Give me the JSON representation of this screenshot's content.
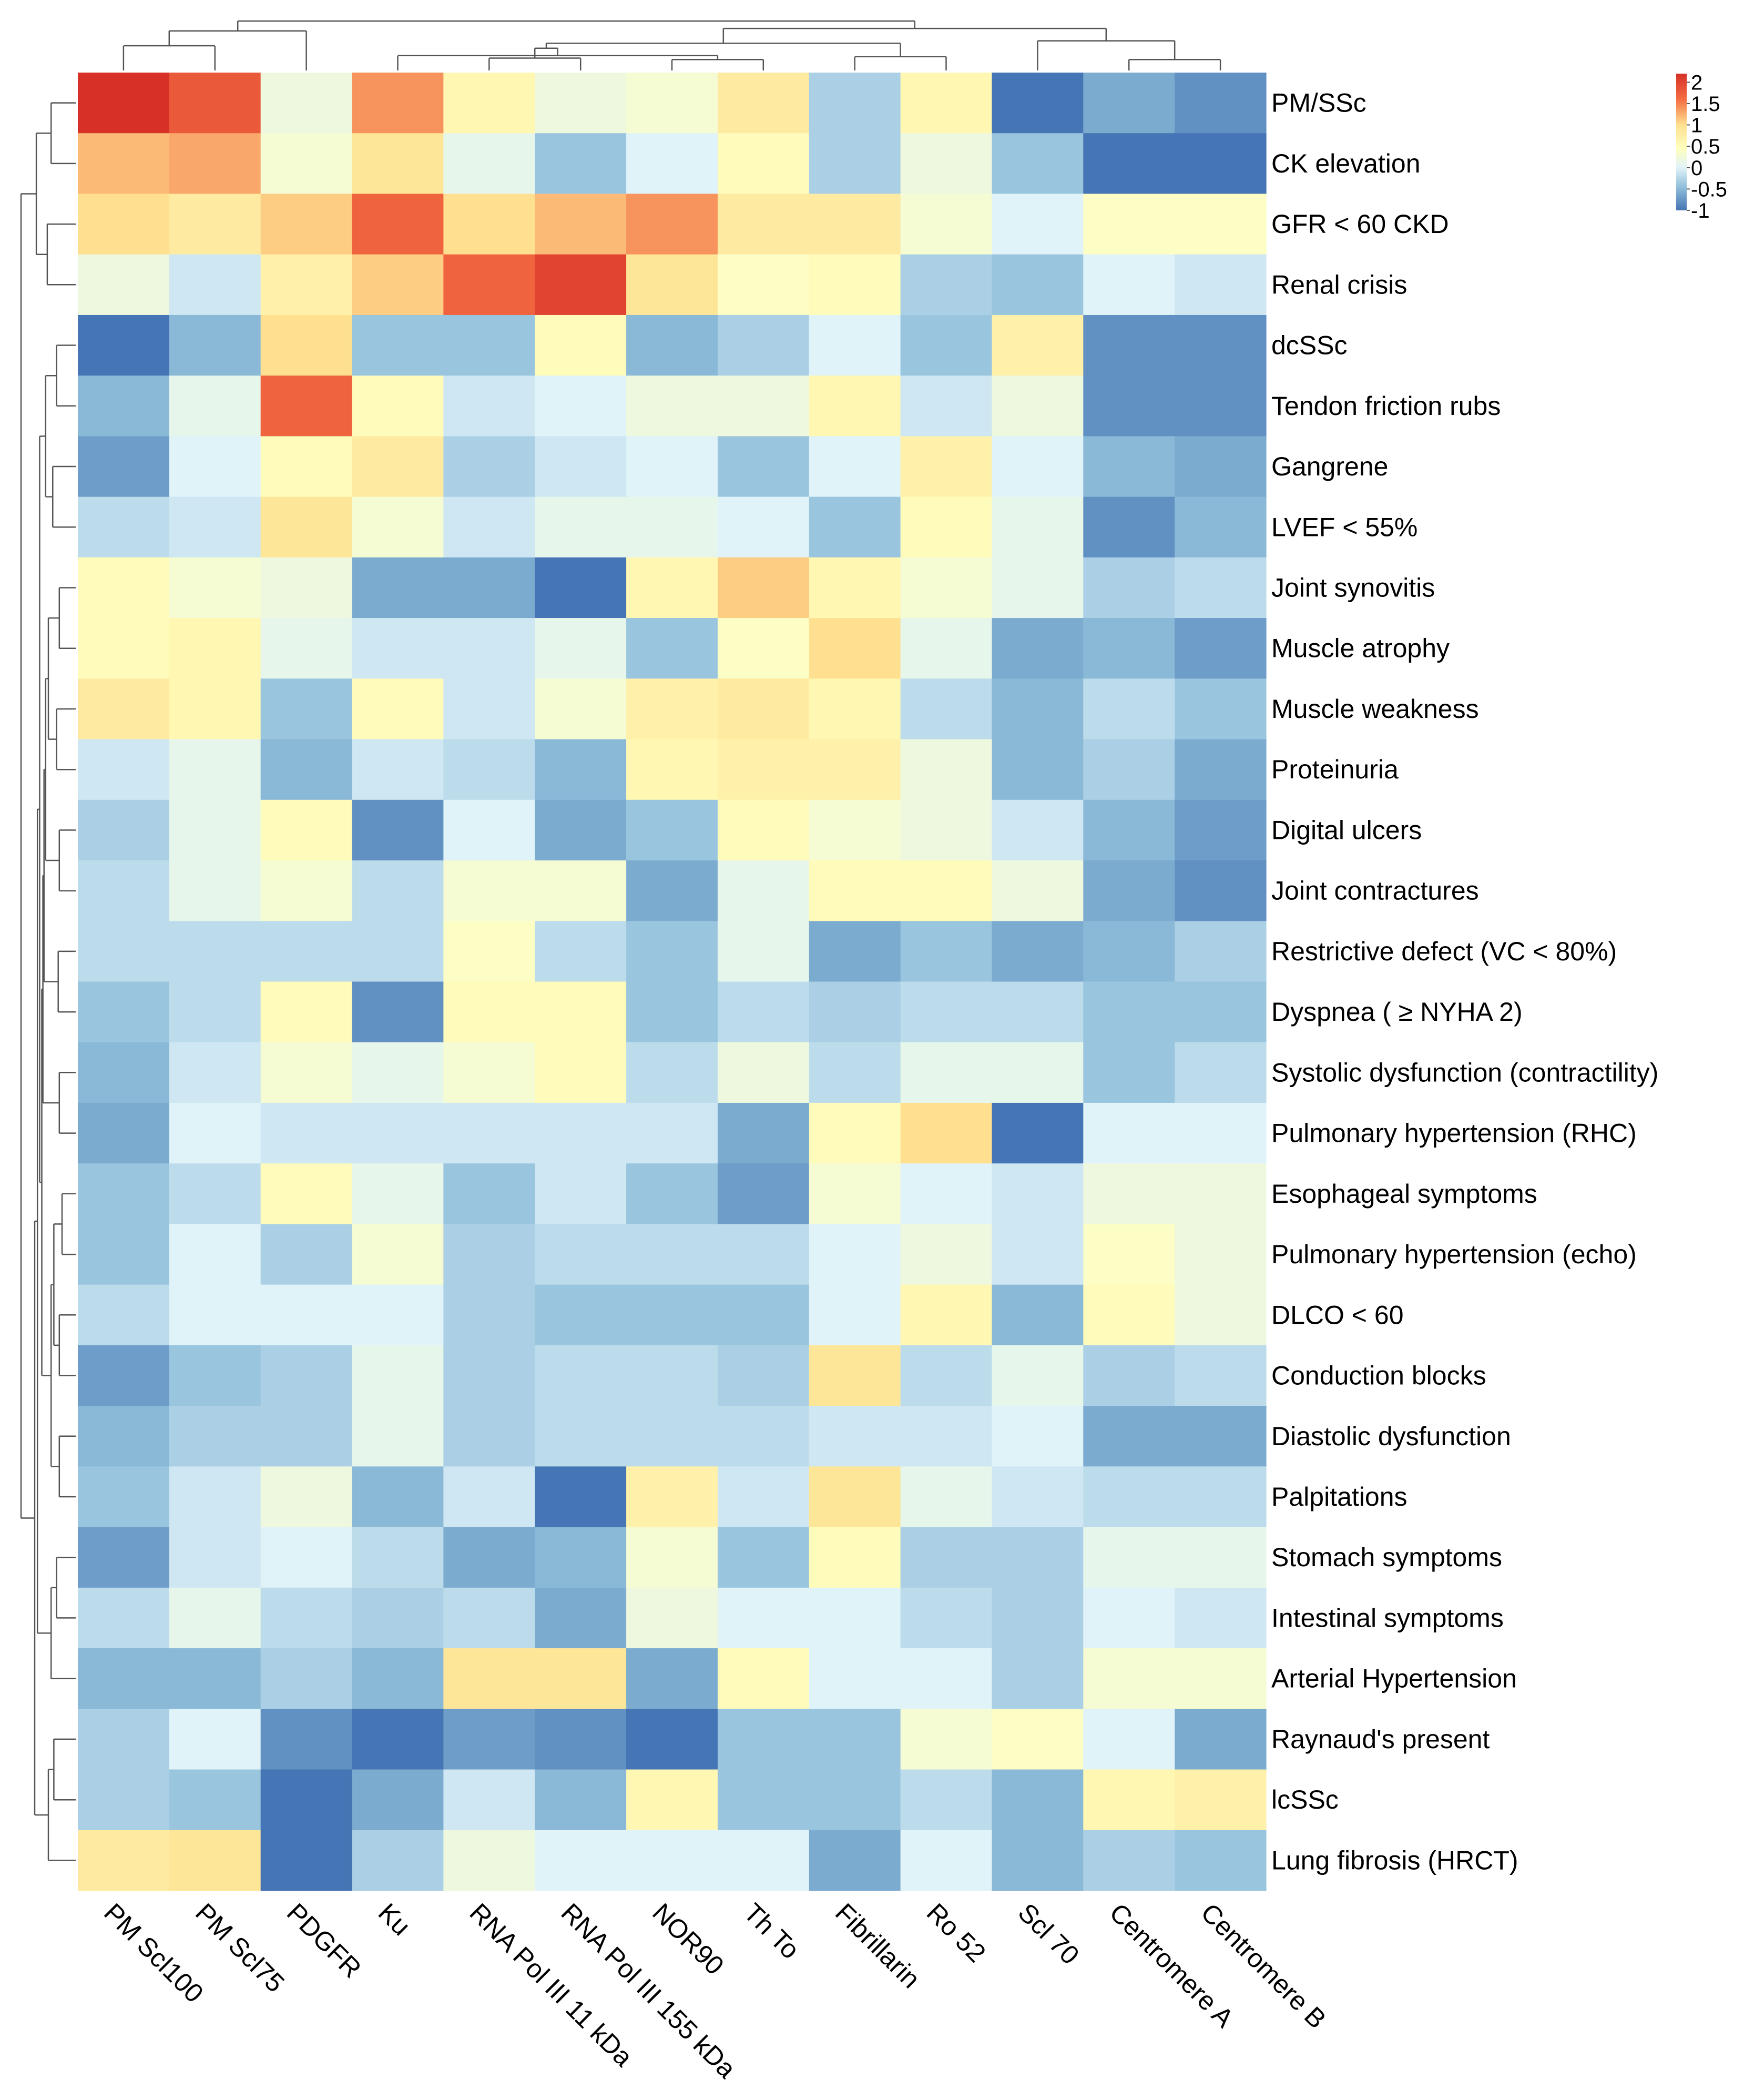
{
  "chart_data": {
    "type": "heatmap",
    "title": "",
    "columns": [
      "PM Scl100",
      "PM Scl75",
      "PDGFR",
      "Ku",
      "RNA Pol III 11 kDa",
      "RNA Pol III 155 kDa",
      "NOR90",
      "Th To",
      "Fibrillarin",
      "Ro 52",
      "Scl 70",
      "Centromere A",
      "Centromere B"
    ],
    "rows": [
      "PM/SSc",
      "CK elevation",
      "GFR < 60 CKD",
      "Renal crisis",
      "dcSSc",
      "Tendon friction rubs",
      "Gangrene",
      "LVEF < 55%",
      "Joint synovitis",
      "Muscle atrophy",
      "Muscle weakness",
      "Proteinuria",
      "Digital ulcers",
      "Joint contractures",
      "Restrictive defect (VC < 80%)",
      "Dyspnea ( ≥ NYHA 2)",
      "Systolic dysfunction (contractility)",
      "Pulmonary hypertension (RHC)",
      "Esophageal symptoms",
      "Pulmonary hypertension (echo)",
      "DLCO < 60",
      "Conduction blocks",
      "Diastolic dysfunction",
      "Palpitations",
      "Stomach symptoms",
      "Intestinal symptoms",
      "Arterial Hypertension",
      "Raynaud's present",
      "lcSSc",
      "Lung fibrosis (HRCT)"
    ],
    "values": [
      [
        2.2,
        1.8,
        0.2,
        1.4,
        0.6,
        0.2,
        0.3,
        0.8,
        -0.3,
        0.6,
        -1.0,
        -0.6,
        -0.8
      ],
      [
        1.2,
        1.3,
        0.3,
        0.9,
        0.1,
        -0.4,
        0.0,
        0.5,
        -0.3,
        0.2,
        -0.4,
        -1.0,
        -1.0
      ],
      [
        1.0,
        0.8,
        1.1,
        1.7,
        1.0,
        1.2,
        1.4,
        0.8,
        0.8,
        0.3,
        0.0,
        0.4,
        0.4
      ],
      [
        0.2,
        -0.1,
        0.7,
        1.1,
        1.7,
        2.0,
        0.9,
        0.4,
        0.5,
        -0.3,
        -0.4,
        0.0,
        -0.1
      ],
      [
        -1.0,
        -0.5,
        1.0,
        -0.4,
        -0.4,
        0.5,
        -0.5,
        -0.3,
        0.0,
        -0.4,
        0.7,
        -0.8,
        -0.8
      ],
      [
        -0.5,
        0.1,
        1.7,
        0.5,
        -0.1,
        0.0,
        0.2,
        0.2,
        0.6,
        -0.1,
        0.2,
        -0.8,
        -0.8
      ],
      [
        -0.7,
        0.0,
        0.5,
        0.8,
        -0.3,
        -0.1,
        0.0,
        -0.4,
        0.0,
        0.7,
        0.0,
        -0.5,
        -0.6
      ],
      [
        -0.2,
        -0.1,
        0.9,
        0.3,
        -0.1,
        0.1,
        0.1,
        0.0,
        -0.4,
        0.5,
        0.1,
        -0.8,
        -0.5
      ],
      [
        0.5,
        0.3,
        0.2,
        -0.6,
        -0.6,
        -1.0,
        0.6,
        1.1,
        0.6,
        0.3,
        0.1,
        -0.3,
        -0.2
      ],
      [
        0.5,
        0.6,
        0.1,
        -0.1,
        -0.1,
        0.1,
        -0.4,
        0.4,
        1.0,
        0.1,
        -0.6,
        -0.5,
        -0.7
      ],
      [
        0.8,
        0.6,
        -0.4,
        0.5,
        -0.1,
        0.3,
        0.7,
        0.8,
        0.6,
        -0.2,
        -0.5,
        -0.2,
        -0.4
      ],
      [
        -0.1,
        0.1,
        -0.5,
        -0.1,
        -0.2,
        -0.5,
        0.6,
        0.7,
        0.7,
        0.2,
        -0.5,
        -0.3,
        -0.6
      ],
      [
        -0.3,
        0.1,
        0.5,
        -0.8,
        0.0,
        -0.6,
        -0.4,
        0.5,
        0.3,
        0.2,
        -0.1,
        -0.5,
        -0.7
      ],
      [
        -0.2,
        0.1,
        0.3,
        -0.2,
        0.3,
        0.3,
        -0.6,
        0.1,
        0.5,
        0.5,
        0.2,
        -0.6,
        -0.8
      ],
      [
        -0.2,
        -0.2,
        -0.2,
        -0.2,
        0.4,
        -0.2,
        -0.4,
        0.1,
        -0.6,
        -0.4,
        -0.6,
        -0.5,
        -0.3
      ],
      [
        -0.4,
        -0.2,
        0.5,
        -0.8,
        0.5,
        0.5,
        -0.4,
        -0.2,
        -0.3,
        -0.2,
        -0.2,
        -0.4,
        -0.4
      ],
      [
        -0.5,
        -0.1,
        0.3,
        0.1,
        0.3,
        0.5,
        -0.2,
        0.2,
        -0.2,
        0.1,
        0.1,
        -0.4,
        -0.2
      ],
      [
        -0.6,
        0.0,
        -0.1,
        -0.1,
        -0.1,
        -0.1,
        -0.1,
        -0.6,
        0.5,
        1.0,
        -1.0,
        0.0,
        0.0
      ],
      [
        -0.4,
        -0.2,
        0.5,
        0.1,
        -0.4,
        -0.1,
        -0.4,
        -0.7,
        0.3,
        0.0,
        -0.1,
        0.2,
        0.2
      ],
      [
        -0.4,
        0.0,
        -0.3,
        0.3,
        -0.3,
        -0.2,
        -0.2,
        -0.2,
        0.0,
        0.2,
        -0.1,
        0.4,
        0.2
      ],
      [
        -0.2,
        0.0,
        0.0,
        0.0,
        -0.3,
        -0.4,
        -0.4,
        -0.4,
        0.0,
        0.6,
        -0.5,
        0.5,
        0.2
      ],
      [
        -0.7,
        -0.4,
        -0.3,
        0.1,
        -0.3,
        -0.2,
        -0.2,
        -0.3,
        0.9,
        -0.2,
        0.1,
        -0.3,
        -0.2
      ],
      [
        -0.5,
        -0.3,
        -0.3,
        0.1,
        -0.3,
        -0.2,
        -0.2,
        -0.2,
        -0.1,
        -0.1,
        0.0,
        -0.6,
        -0.6
      ],
      [
        -0.4,
        -0.1,
        0.2,
        -0.5,
        -0.1,
        -1.0,
        0.7,
        -0.1,
        0.9,
        0.1,
        -0.1,
        -0.2,
        -0.2
      ],
      [
        -0.7,
        -0.1,
        0.0,
        -0.2,
        -0.6,
        -0.5,
        0.3,
        -0.4,
        0.5,
        -0.3,
        -0.3,
        0.1,
        0.1
      ],
      [
        -0.2,
        0.1,
        -0.2,
        -0.3,
        -0.2,
        -0.6,
        0.2,
        0.0,
        0.0,
        -0.2,
        -0.3,
        0.0,
        -0.1
      ],
      [
        -0.5,
        -0.5,
        -0.3,
        -0.5,
        0.9,
        0.9,
        -0.6,
        0.5,
        0.0,
        0.0,
        -0.3,
        0.3,
        0.3
      ],
      [
        -0.3,
        0.0,
        -0.8,
        -1.0,
        -0.7,
        -0.8,
        -1.0,
        -0.4,
        -0.4,
        0.3,
        0.4,
        0.0,
        -0.6
      ],
      [
        -0.3,
        -0.4,
        -1.0,
        -0.6,
        -0.1,
        -0.5,
        0.6,
        -0.4,
        -0.4,
        -0.2,
        -0.5,
        0.6,
        0.7
      ],
      [
        0.8,
        0.9,
        -1.0,
        -0.3,
        0.2,
        0.0,
        0.0,
        0.0,
        -0.6,
        0.0,
        -0.5,
        -0.3,
        -0.4
      ]
    ],
    "color_scale": {
      "min": -1,
      "max": 2.2,
      "stops": [
        {
          "value": -1.0,
          "color": "#4575b4"
        },
        {
          "value": -0.45,
          "color": "#91bfdb"
        },
        {
          "value": 0.0,
          "color": "#e0f3f8"
        },
        {
          "value": 0.45,
          "color": "#ffffbf"
        },
        {
          "value": 1.0,
          "color": "#fee090"
        },
        {
          "value": 1.6,
          "color": "#f46d43"
        },
        {
          "value": 2.2,
          "color": "#d73027"
        }
      ]
    },
    "legend": {
      "position": "top-right",
      "ticks": [
        {
          "label": "2",
          "value": 2
        },
        {
          "label": "1.5",
          "value": 1.5
        },
        {
          "label": "1",
          "value": 1
        },
        {
          "label": "0.5",
          "value": 0.5
        },
        {
          "label": "0",
          "value": 0
        },
        {
          "label": "-0.5",
          "value": -0.5
        },
        {
          "label": "-1",
          "value": -1
        }
      ]
    },
    "column_dendrogram": {
      "merges": [
        [
          -7,
          -8
        ],
        [
          -4,
          1
        ],
        [
          -5,
          -6
        ],
        [
          2,
          3
        ],
        [
          -9,
          -10
        ],
        [
          4,
          5
        ],
        [
          -12,
          -13
        ],
        [
          -11,
          7
        ],
        [
          -1,
          -2
        ],
        [
          9,
          -3
        ],
        [
          6,
          8
        ],
        [
          10,
          11
        ]
      ],
      "heights": [
        0.22,
        0.3,
        0.25,
        0.45,
        0.28,
        0.55,
        0.22,
        0.6,
        0.5,
        0.8,
        0.85,
        1.0
      ]
    },
    "row_dendrogram": {
      "merges": [
        [
          -1,
          -2
        ],
        [
          -3,
          -4
        ],
        [
          1,
          2
        ],
        [
          -5,
          -6
        ],
        [
          -7,
          -8
        ],
        [
          4,
          5
        ],
        [
          -9,
          -10
        ],
        [
          -11,
          -12
        ],
        [
          7,
          8
        ],
        [
          -13,
          -14
        ],
        [
          9,
          10
        ],
        [
          -15,
          -16
        ],
        [
          11,
          12
        ],
        [
          -17,
          -18
        ],
        [
          13,
          14
        ],
        [
          -19,
          -20
        ],
        [
          -21,
          -22
        ],
        [
          16,
          17
        ],
        [
          -23,
          -24
        ],
        [
          18,
          19
        ],
        [
          15,
          20
        ],
        [
          6,
          21
        ],
        [
          -25,
          -26
        ],
        [
          -27,
          23
        ],
        [
          22,
          24
        ],
        [
          -28,
          -29
        ],
        [
          26,
          -30
        ],
        [
          25,
          27
        ],
        [
          3,
          28
        ]
      ],
      "heights": [
        0.45,
        0.52,
        0.72,
        0.35,
        0.42,
        0.55,
        0.3,
        0.35,
        0.5,
        0.3,
        0.55,
        0.32,
        0.58,
        0.3,
        0.6,
        0.25,
        0.3,
        0.4,
        0.3,
        0.45,
        0.62,
        0.66,
        0.35,
        0.45,
        0.7,
        0.4,
        0.5,
        0.75,
        1.0
      ]
    }
  }
}
